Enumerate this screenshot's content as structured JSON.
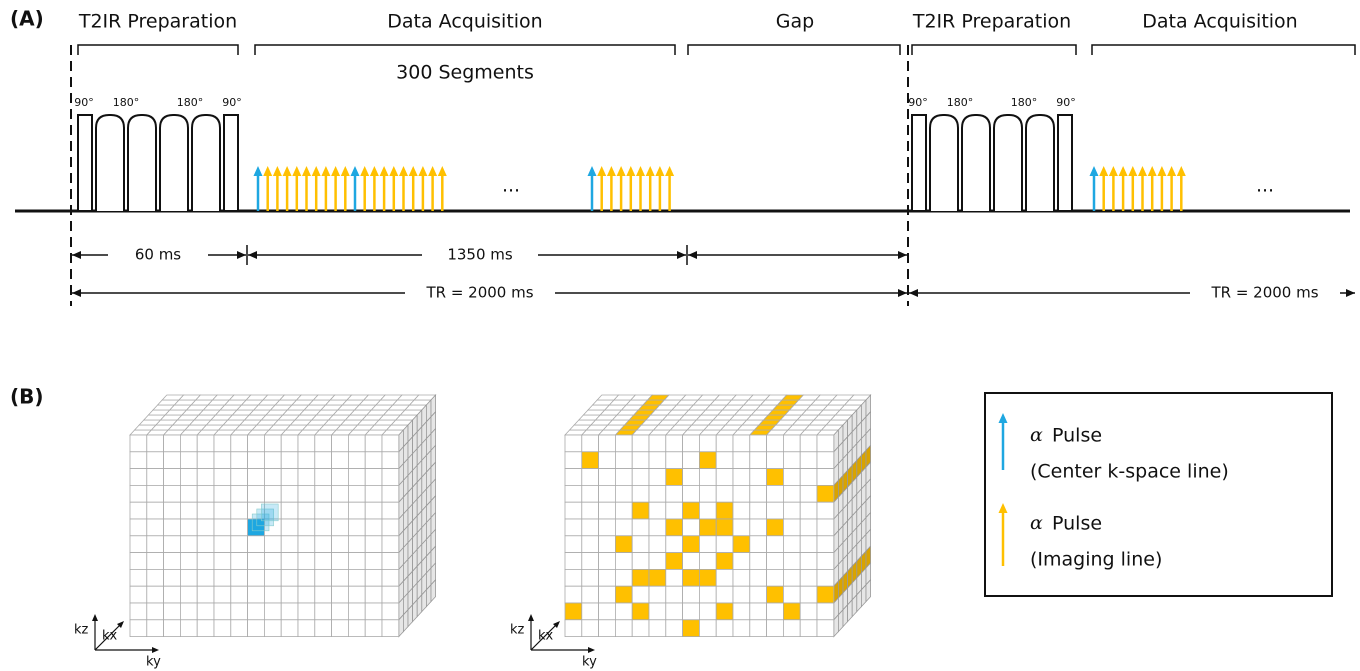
{
  "panel_a": {
    "label": "(A)",
    "sections": [
      "T2IR Preparation",
      "Data Acquisition",
      "Gap",
      "T2IR Preparation",
      "Data Acquisition"
    ],
    "segments_note": "300 Segments",
    "pulse_labels": [
      [
        "90°",
        "180°",
        "180°",
        "90°"
      ],
      [
        "90°",
        "180°",
        "180°",
        "90°"
      ]
    ],
    "ellipsis": [
      "...",
      "..."
    ],
    "durations": [
      "60 ms",
      "1350 ms"
    ],
    "tr": [
      "TR = 2000 ms",
      "TR = 2000 ms"
    ]
  },
  "panel_b": {
    "label": "(B)",
    "axes": [
      {
        "kz": "kz",
        "kx": "kx",
        "ky": "ky"
      },
      {
        "kz": "kz",
        "kx": "kx",
        "ky": "ky"
      }
    ],
    "legend": [
      {
        "symbol": "α",
        "title": "Pulse",
        "detail": "(Center k-space line)"
      },
      {
        "symbol": "α",
        "title": "Pulse",
        "detail": "(Imaging line)"
      }
    ]
  }
}
